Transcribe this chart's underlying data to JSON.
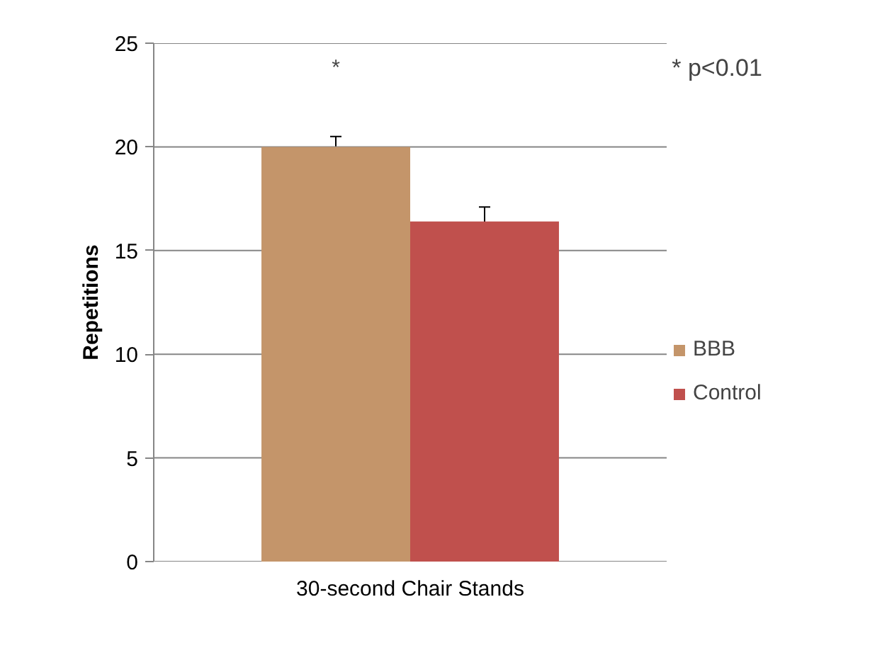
{
  "chart_data": {
    "type": "bar",
    "ylabel": "Repetitions",
    "categories": [
      "30-second Chair Stands"
    ],
    "series": [
      {
        "name": "BBB",
        "color": "#c4956a",
        "values": [
          20
        ],
        "errors": [
          0.5
        ]
      },
      {
        "name": "Control",
        "color": "#c0504d",
        "values": [
          16.4
        ],
        "errors": [
          0.7
        ]
      }
    ],
    "ylim": [
      0,
      25
    ],
    "yticks": [
      0,
      5,
      10,
      15,
      20,
      25
    ],
    "grid": "y",
    "legend": "right",
    "annotations": [
      "*",
      "* p<0.01"
    ]
  }
}
